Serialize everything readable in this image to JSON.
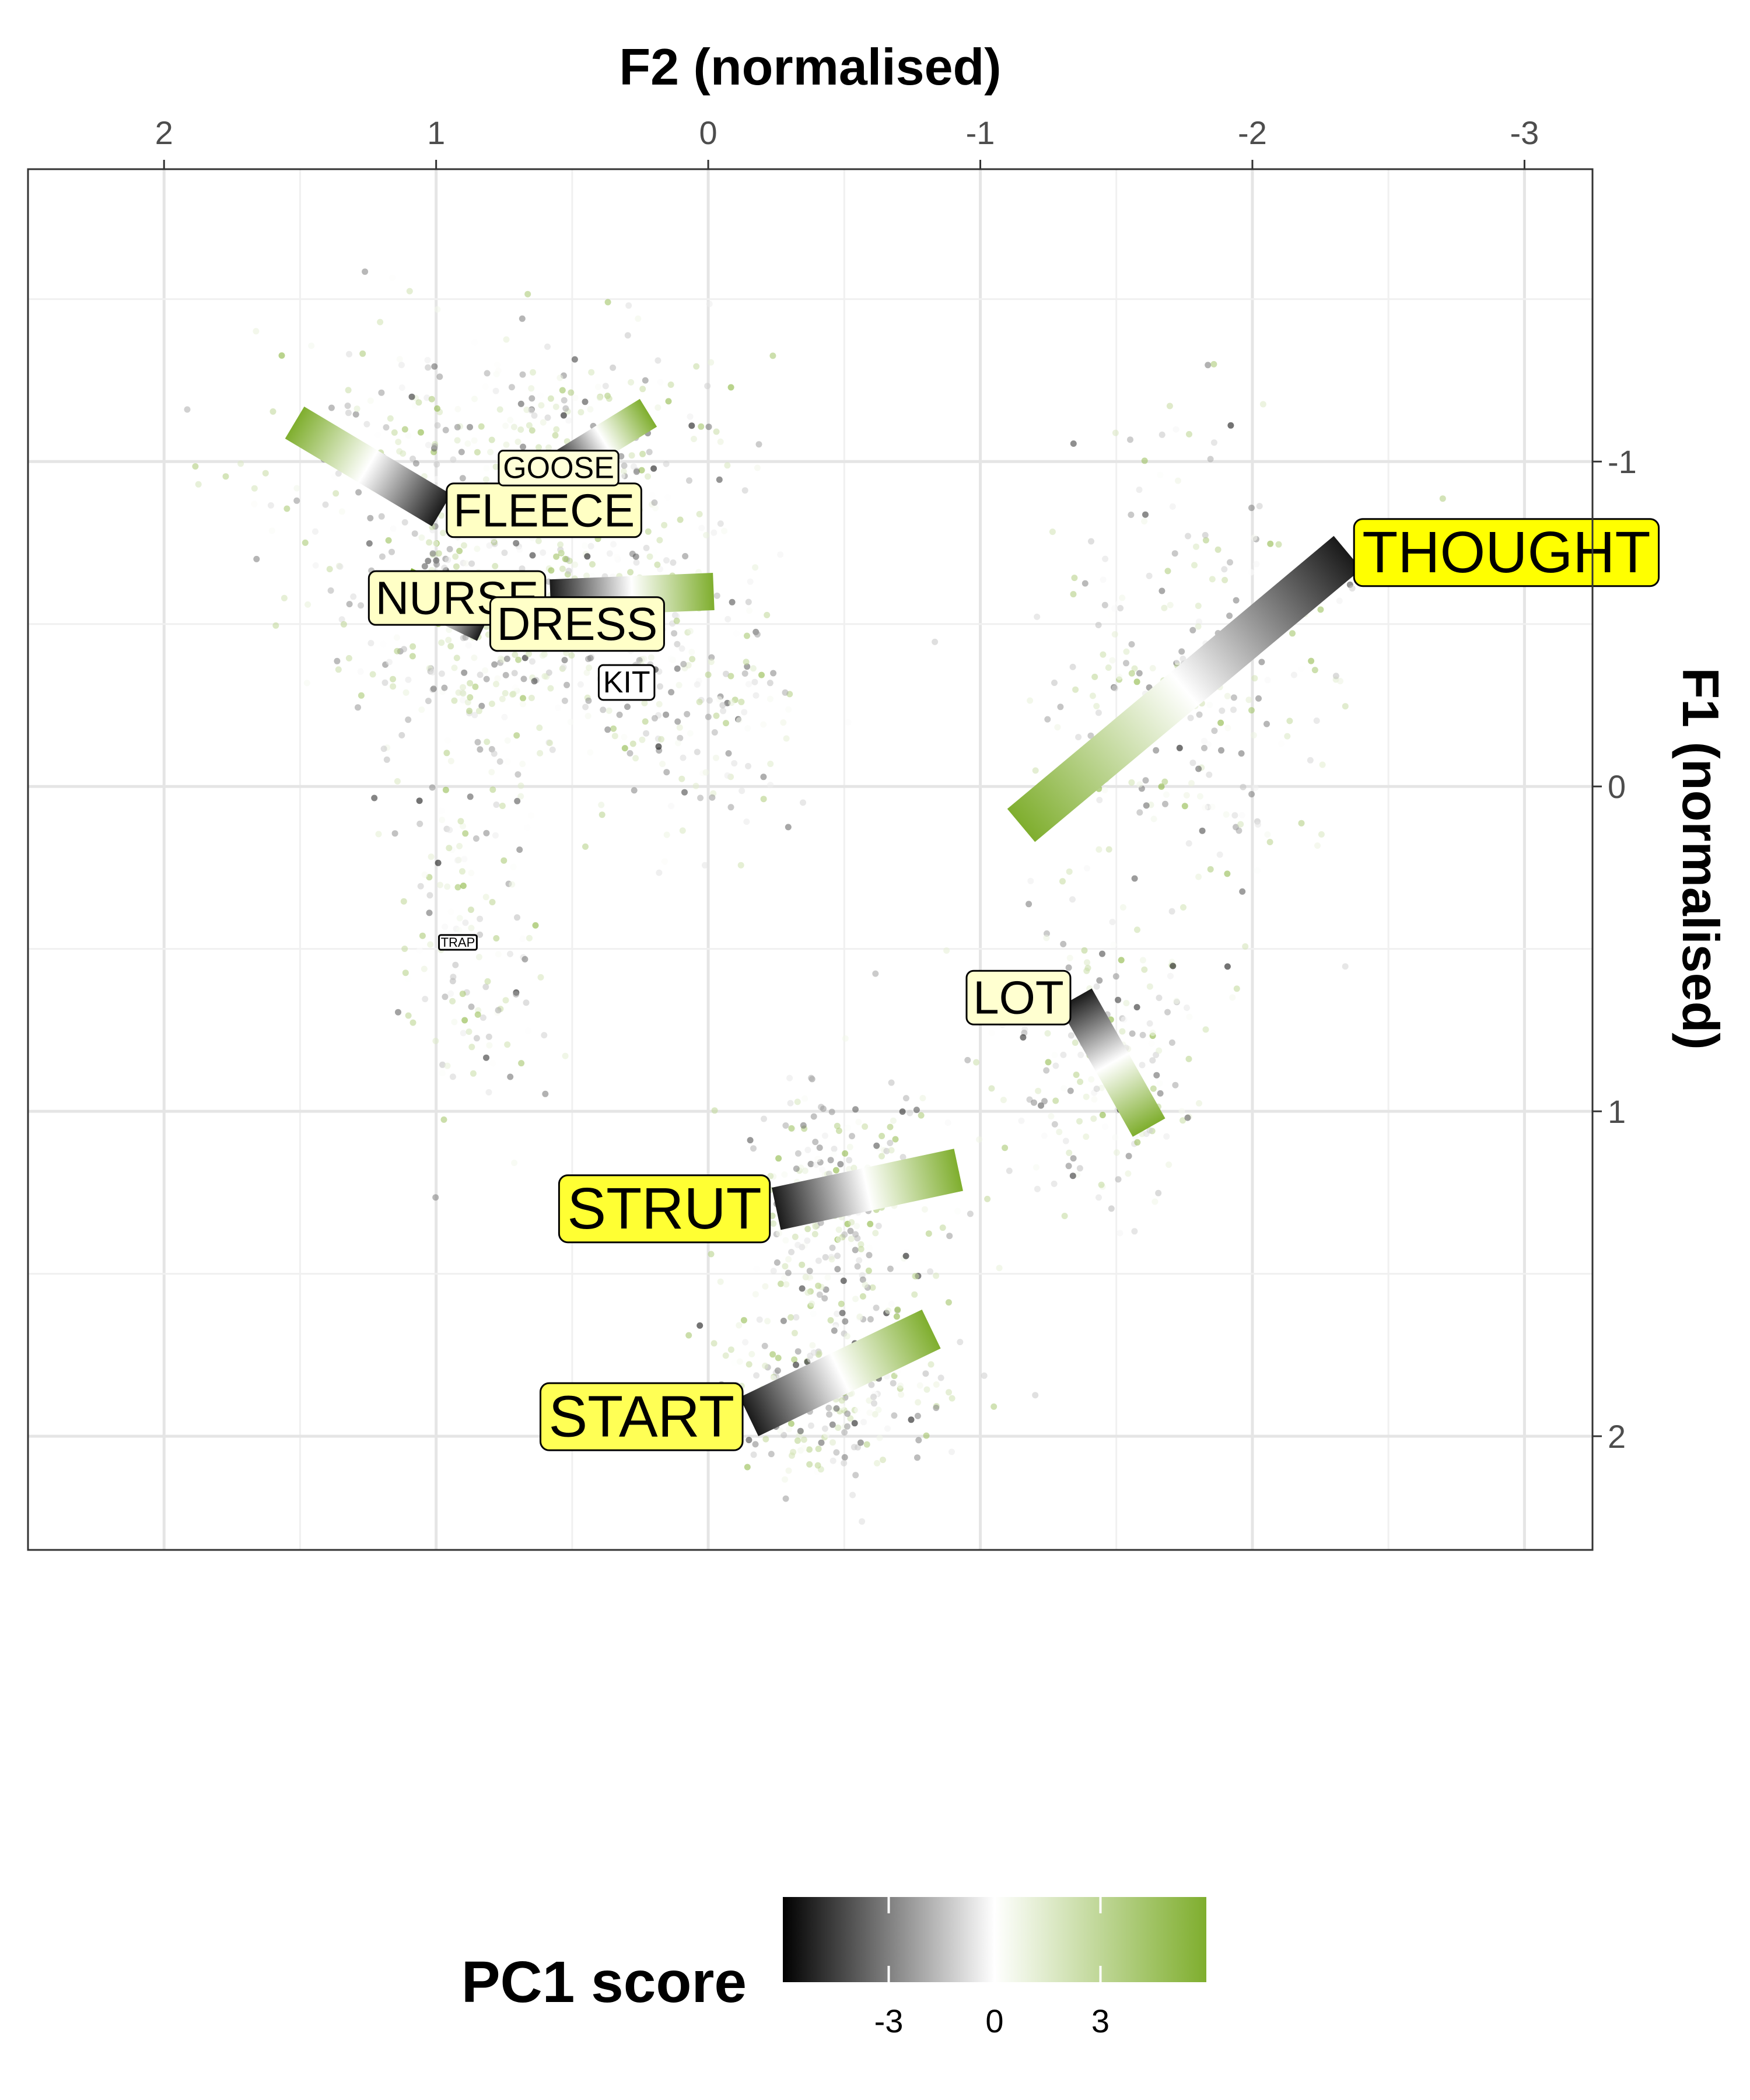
{
  "chart_data": {
    "type": "scatter",
    "title": "",
    "xlabel": "F2 (normalised)",
    "ylabel": "F1 (normalised)",
    "x_axis_position": "top",
    "y_axis_position": "right",
    "x_reversed": true,
    "y_reversed": true,
    "xlim": [
      2.5,
      -3.25
    ],
    "ylim": [
      -1.9,
      2.35
    ],
    "x_ticks": [
      2,
      1,
      0,
      -1,
      -2,
      -3
    ],
    "x_tick_labels": [
      "2",
      "1",
      "0",
      "-1",
      "-2",
      "-3"
    ],
    "y_ticks": [
      -1,
      0,
      1,
      2
    ],
    "y_tick_labels": [
      "-1",
      "0",
      "1",
      "2"
    ],
    "grid": true,
    "legend": {
      "title": "PC1 score",
      "position": "bottom",
      "type": "colorbar",
      "range": [
        -6,
        6
      ],
      "ticks": [
        -3,
        0,
        3
      ],
      "tick_labels": [
        "-3",
        "0",
        "3"
      ],
      "colors": [
        "#000000",
        "#ffffff",
        "#7fae2e"
      ]
    },
    "vowels": [
      {
        "label": "THOUGHT",
        "size": "large",
        "fill": "#ffff00",
        "start": {
          "f2": -2.35,
          "f1": -0.72
        },
        "end": {
          "f2": -1.15,
          "f1": 0.12
        },
        "cloud": {
          "f2": -1.75,
          "f1": -0.3,
          "sd_f2": 0.28,
          "sd_f1": 0.38
        }
      },
      {
        "label": "STRUT",
        "size": "large",
        "fill": "#ffff33",
        "start": {
          "f2": -0.25,
          "f1": 1.3
        },
        "end": {
          "f2": -0.92,
          "f1": 1.18
        },
        "cloud": {
          "f2": -0.5,
          "f1": 1.3,
          "sd_f2": 0.2,
          "sd_f1": 0.18
        }
      },
      {
        "label": "START",
        "size": "large",
        "fill": "#ffff55",
        "start": {
          "f2": -0.15,
          "f1": 1.94
        },
        "end": {
          "f2": -0.82,
          "f1": 1.67
        },
        "cloud": {
          "f2": -0.45,
          "f1": 1.85,
          "sd_f2": 0.2,
          "sd_f1": 0.15
        }
      },
      {
        "label": "FLEECE",
        "size": "medium",
        "fill": "#ffffc4",
        "start": {
          "f2": 0.98,
          "f1": -0.85
        },
        "end": {
          "f2": 1.52,
          "f1": -1.12
        },
        "cloud": {
          "f2": 1.1,
          "f1": -1.0,
          "sd_f2": 0.3,
          "sd_f1": 0.22
        }
      },
      {
        "label": "GOOSE",
        "size": "small",
        "fill": "#ffffd8",
        "start": {
          "f2": 0.55,
          "f1": -0.98
        },
        "end": {
          "f2": 0.22,
          "f1": -1.15
        },
        "cloud": {
          "f2": 0.4,
          "f1": -1.05,
          "sd_f2": 0.25,
          "sd_f1": 0.18
        }
      },
      {
        "label": "NURSE",
        "size": "medium",
        "fill": "#ffffc6",
        "start": {
          "f2": 0.58,
          "f1": -0.58
        },
        "end": {
          "f2": -0.02,
          "f1": -0.6
        },
        "cloud": {
          "f2": 0.5,
          "f1": -0.55,
          "sd_f2": 0.3,
          "sd_f1": 0.15
        }
      },
      {
        "label": "DRESS",
        "size": "medium",
        "fill": "#ffffc8",
        "start": {
          "f2": 0.82,
          "f1": -0.5
        },
        "end": {
          "f2": 1.12,
          "f1": -0.62
        },
        "cloud": {
          "f2": 0.85,
          "f1": -0.45,
          "sd_f2": 0.25,
          "sd_f1": 0.18
        }
      },
      {
        "label": "KIT",
        "size": "small",
        "fill": "#ffffff",
        "start": {
          "f2": 0.3,
          "f1": -0.32
        },
        "end": {
          "f2": 0.26,
          "f1": -0.34
        },
        "cloud": {
          "f2": 0.1,
          "f1": -0.25,
          "sd_f2": 0.2,
          "sd_f1": 0.2
        }
      },
      {
        "label": "TRAP",
        "size": "tiny",
        "fill": "#ffffff",
        "start": {
          "f2": 0.92,
          "f1": 0.48
        },
        "end": {
          "f2": 0.88,
          "f1": 0.5
        },
        "cloud": {
          "f2": 0.88,
          "f1": 0.45,
          "sd_f2": 0.15,
          "sd_f1": 0.3
        }
      },
      {
        "label": "LOT",
        "size": "medium",
        "fill": "#ffffd0",
        "start": {
          "f2": -1.35,
          "f1": 0.65
        },
        "end": {
          "f2": -1.62,
          "f1": 1.05
        },
        "cloud": {
          "f2": -1.45,
          "f1": 0.85,
          "sd_f2": 0.18,
          "sd_f1": 0.2
        }
      }
    ]
  }
}
